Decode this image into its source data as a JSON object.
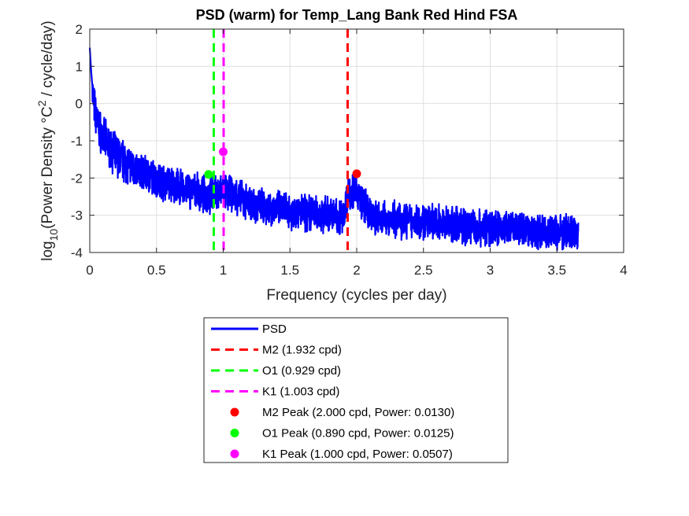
{
  "chart_data": {
    "type": "line",
    "title": "PSD (warm) for Temp_Lang Bank Red Hind FSA",
    "xlabel": "Frequency (cycles per day)",
    "ylabel": {
      "prefix": "log",
      "prefix_subscript": "10",
      "main": "(Power Density °C",
      "superscript": "2",
      "suffix": " / cycle/day)"
    },
    "xlim": [
      0,
      4
    ],
    "ylim": [
      -4,
      2
    ],
    "xticks": [
      0,
      0.5,
      1,
      1.5,
      2,
      2.5,
      3,
      3.5,
      4
    ],
    "xtick_labels": [
      "0",
      "0.5",
      "1",
      "1.5",
      "2",
      "2.5",
      "3",
      "3.5",
      "4"
    ],
    "yticks": [
      -4,
      -3,
      -2,
      -1,
      0,
      1,
      2
    ],
    "ytick_labels": [
      "-4",
      "-3",
      "-2",
      "-1",
      "0",
      "1",
      "2"
    ],
    "grid": true,
    "legend_position": "below the plot",
    "series": [
      {
        "name": "PSD",
        "color": "#0000ff",
        "style": "solid",
        "x_range": [
          0,
          3.66
        ],
        "trend": [
          {
            "x": 0.0,
            "y": 1.5
          },
          {
            "x": 0.01,
            "y": 0.9
          },
          {
            "x": 0.03,
            "y": 0.0
          },
          {
            "x": 0.06,
            "y": -0.5
          },
          {
            "x": 0.1,
            "y": -0.9
          },
          {
            "x": 0.2,
            "y": -1.35
          },
          {
            "x": 0.35,
            "y": -1.75
          },
          {
            "x": 0.5,
            "y": -2.0
          },
          {
            "x": 0.7,
            "y": -2.25
          },
          {
            "x": 0.9,
            "y": -2.45
          },
          {
            "x": 1.0,
            "y": -2.3
          },
          {
            "x": 1.2,
            "y": -2.65
          },
          {
            "x": 1.5,
            "y": -2.85
          },
          {
            "x": 1.9,
            "y": -3.0
          },
          {
            "x": 1.93,
            "y": -2.4
          },
          {
            "x": 2.0,
            "y": -2.3
          },
          {
            "x": 2.1,
            "y": -3.0
          },
          {
            "x": 2.5,
            "y": -3.15
          },
          {
            "x": 3.0,
            "y": -3.3
          },
          {
            "x": 3.66,
            "y": -3.45
          }
        ]
      },
      {
        "name": "M2 (1.932 cpd)",
        "color": "#ff0000",
        "style": "dashed",
        "x": 1.932
      },
      {
        "name": "O1 (0.929 cpd)",
        "color": "#00ff00",
        "style": "dashed",
        "x": 0.929
      },
      {
        "name": "K1 (1.003 cpd)",
        "color": "#ff00ff",
        "style": "dashed",
        "x": 1.003
      },
      {
        "name": "M2 Peak (2.000 cpd, Power: 0.0130)",
        "color": "#ff0000",
        "style": "marker",
        "x": 2.0,
        "y": -1.886
      },
      {
        "name": "O1 Peak (0.890 cpd, Power: 0.0125)",
        "color": "#00ff00",
        "style": "marker",
        "x": 0.89,
        "y": -1.903
      },
      {
        "name": "K1 Peak (1.000 cpd, Power: 0.0507)",
        "color": "#ff00ff",
        "style": "marker",
        "x": 1.0,
        "y": -1.295
      }
    ]
  }
}
